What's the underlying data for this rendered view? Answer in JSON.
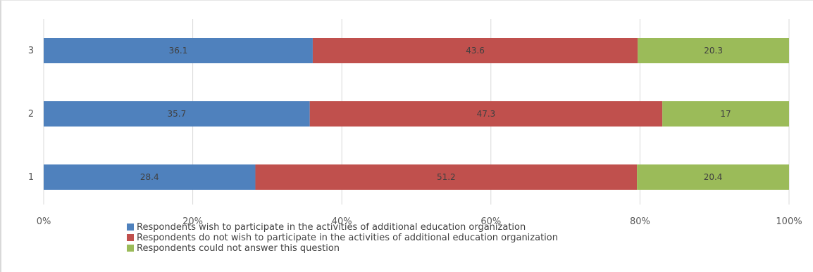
{
  "chart_data": {
    "type": "bar",
    "orientation": "horizontal",
    "stacked": "percent",
    "categories": [
      "1",
      "2",
      "3"
    ],
    "series": [
      {
        "name": "Respondents wish to participate in the activities of additional education organization",
        "color": "#4f81bd",
        "values": [
          28.4,
          35.7,
          36.1
        ]
      },
      {
        "name": "Respondents do not wish to participate in the activities of additional education organization",
        "color": "#c0504d",
        "values": [
          51.2,
          47.3,
          43.6
        ]
      },
      {
        "name": "Respondents could not answer this question",
        "color": "#9bbb59",
        "values": [
          20.4,
          17,
          20.3
        ]
      }
    ],
    "xticks": [
      "0%",
      "20%",
      "40%",
      "60%",
      "80%",
      "100%"
    ],
    "xlim": [
      0,
      100
    ],
    "grid": true,
    "legend_position": "bottom",
    "title": "",
    "xlabel": "",
    "ylabel": ""
  }
}
